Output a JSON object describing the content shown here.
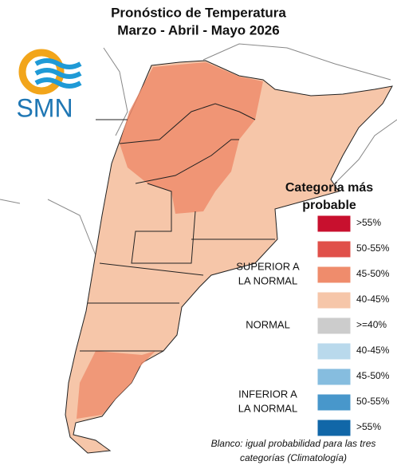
{
  "header": {
    "title": [
      "Pronóstico de Temperatura",
      "Marzo - Abril - Mayo 2026"
    ]
  },
  "logo": {
    "text": "SMN"
  },
  "legend": {
    "title": [
      "Categoría más",
      "probable"
    ],
    "groups": [
      {
        "label": [
          "SUPERIOR A",
          "LA NORMAL"
        ],
        "items": [
          {
            "label": ">55%",
            "color": "#c8102e"
          },
          {
            "label": "50-55%",
            "color": "#e0504a"
          },
          {
            "label": "45-50%",
            "color": "#ef8c6c"
          },
          {
            "label": "40-45%",
            "color": "#f6c6a9"
          }
        ]
      },
      {
        "label": [
          "NORMAL"
        ],
        "items": [
          {
            "label": ">=40%",
            "color": "#cccccc"
          }
        ]
      },
      {
        "label": [
          "INFERIOR A",
          "LA NORMAL"
        ],
        "items": [
          {
            "label": "40-45%",
            "color": "#b9d9ec"
          },
          {
            "label": "45-50%",
            "color": "#86bddf"
          },
          {
            "label": "50-55%",
            "color": "#4897cb"
          },
          {
            "label": ">55%",
            "color": "#1167a8"
          }
        ]
      }
    ]
  },
  "footnote": [
    "Blanco: igual probabilidad para las tres",
    "categorías (Climatología)"
  ]
}
